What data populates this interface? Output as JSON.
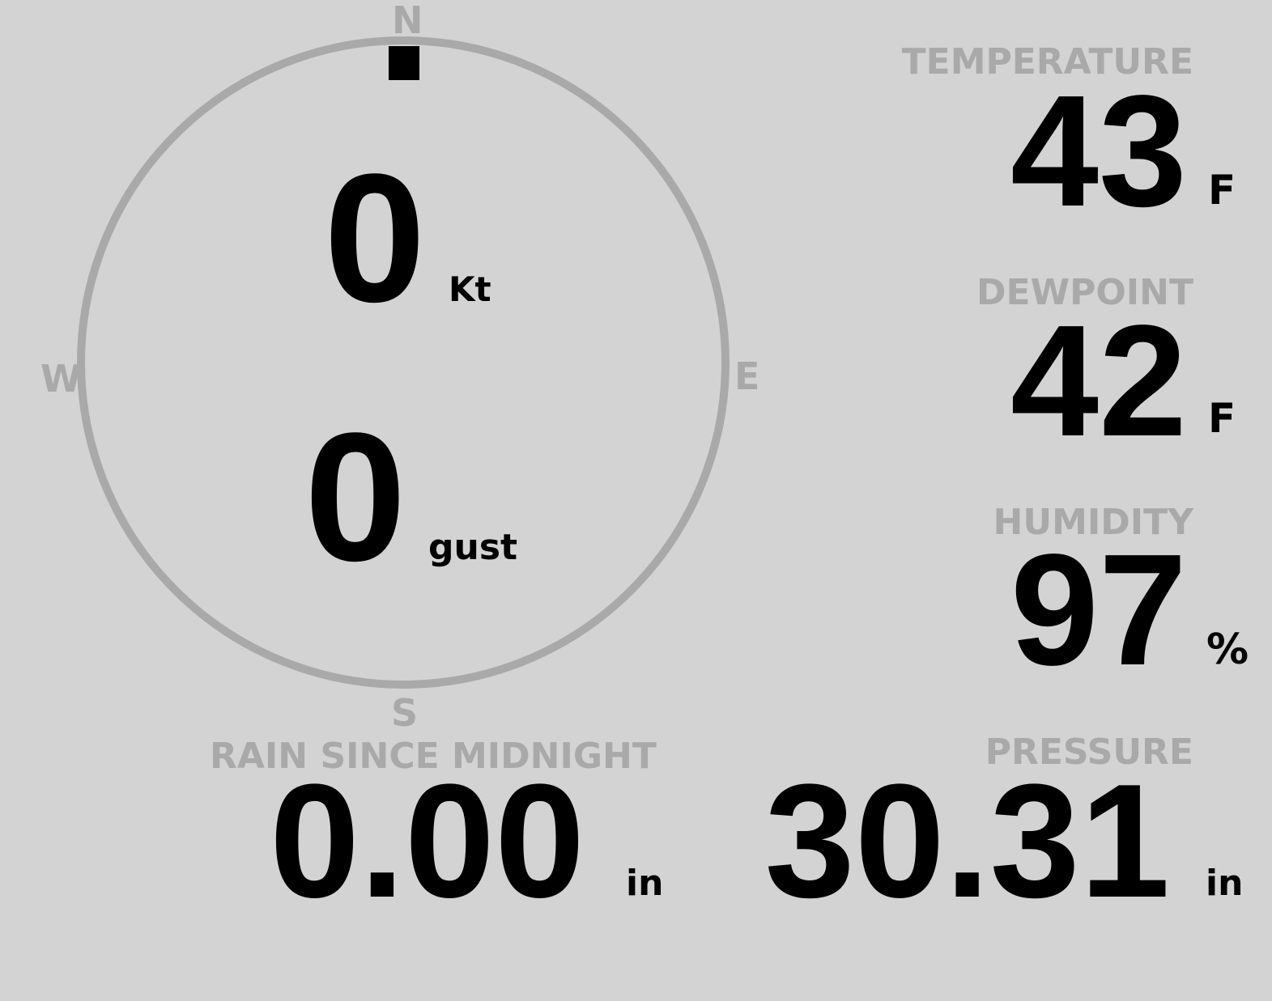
{
  "compass": {
    "north": "N",
    "south": "S",
    "east": "E",
    "west": "W",
    "direction_deg": 0,
    "ring_color": "#a9a9a9",
    "marker_color": "#000000"
  },
  "wind": {
    "speed": "0",
    "speed_unit": "Kt",
    "gust": "0",
    "gust_unit": "gust"
  },
  "temperature": {
    "label": "TEMPERATURE",
    "value": "43",
    "unit": "F"
  },
  "dewpoint": {
    "label": "DEWPOINT",
    "value": "42",
    "unit": "F"
  },
  "humidity": {
    "label": "HUMIDITY",
    "value": "97",
    "unit": "%"
  },
  "rain": {
    "label": "RAIN SINCE MIDNIGHT",
    "value": "0.00",
    "unit": "in"
  },
  "pressure": {
    "label": "PRESSURE",
    "value": "30.31",
    "unit": "in"
  },
  "colors": {
    "background": "#d3d3d3",
    "label": "#a9a9a9",
    "value": "#000000"
  }
}
